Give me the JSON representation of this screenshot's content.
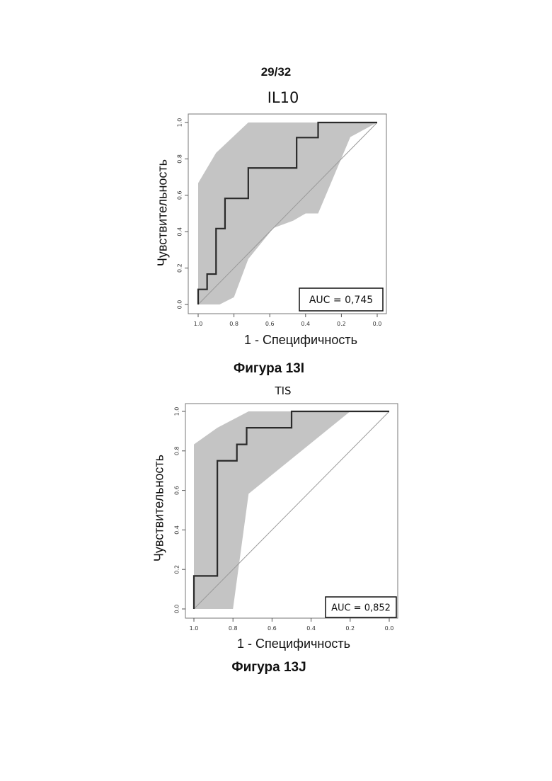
{
  "page_number": "29/32",
  "chart_data": [
    {
      "type": "line",
      "title": "IL10",
      "xlabel": "1 - Специфичность",
      "ylabel": "Чувствительность",
      "caption": "Фигура 13I",
      "auc_label": "AUC = 0,745",
      "x_reversed": true,
      "xlim": [
        1.0,
        0.0
      ],
      "ylim": [
        0.0,
        1.0
      ],
      "x_ticks": [
        "1.0",
        "0.8",
        "0.6",
        "0.4",
        "0.2",
        "0.0"
      ],
      "y_ticks": [
        "0.0",
        "0.2",
        "0.4",
        "0.6",
        "0.8",
        "1.0"
      ],
      "roc_curve": {
        "x": [
          1.0,
          1.0,
          0.95,
          0.95,
          0.9,
          0.9,
          0.85,
          0.85,
          0.72,
          0.72,
          0.45,
          0.45,
          0.33,
          0.33,
          0.0
        ],
        "y": [
          0.0,
          0.083,
          0.083,
          0.167,
          0.167,
          0.417,
          0.417,
          0.583,
          0.583,
          0.75,
          0.75,
          0.917,
          0.917,
          1.0,
          1.0
        ]
      },
      "confidence_band": {
        "upper": {
          "x": [
            1.0,
            1.0,
            0.9,
            0.72,
            0.42,
            0.0
          ],
          "y": [
            0.0,
            0.667,
            0.833,
            1.0,
            1.0,
            1.0
          ]
        },
        "lower": {
          "x": [
            0.0,
            0.15,
            0.33,
            0.4,
            0.47,
            0.58,
            0.72,
            0.8,
            0.88,
            1.0
          ],
          "y": [
            1.0,
            0.92,
            0.5,
            0.5,
            0.46,
            0.42,
            0.25,
            0.04,
            0.0,
            0.0
          ]
        }
      },
      "diagonal": true
    },
    {
      "type": "line",
      "title": "TIS",
      "xlabel": "1 - Специфичность",
      "ylabel": "Чувствительность",
      "caption": "Фигура 13J",
      "auc_label": "AUC = 0,852",
      "x_reversed": true,
      "xlim": [
        1.0,
        0.0
      ],
      "ylim": [
        0.0,
        1.0
      ],
      "x_ticks": [
        "1.0",
        "0.8",
        "0.6",
        "0.4",
        "0.2",
        "0.0"
      ],
      "y_ticks": [
        "0.0",
        "0.2",
        "0.4",
        "0.6",
        "0.8",
        "1.0"
      ],
      "roc_curve": {
        "x": [
          1.0,
          1.0,
          0.88,
          0.88,
          0.78,
          0.78,
          0.73,
          0.73,
          0.5,
          0.5,
          0.0
        ],
        "y": [
          0.0,
          0.167,
          0.167,
          0.75,
          0.75,
          0.833,
          0.833,
          0.917,
          0.917,
          1.0,
          1.0
        ]
      },
      "confidence_band": {
        "upper": {
          "x": [
            1.0,
            1.0,
            0.88,
            0.72,
            0.5,
            0.2
          ],
          "y": [
            0.0,
            0.833,
            0.917,
            1.0,
            1.0,
            1.0
          ]
        },
        "lower": {
          "x": [
            0.2,
            0.72,
            0.8,
            1.0
          ],
          "y": [
            1.0,
            0.583,
            0.0,
            0.0
          ]
        }
      },
      "diagonal": true
    }
  ]
}
